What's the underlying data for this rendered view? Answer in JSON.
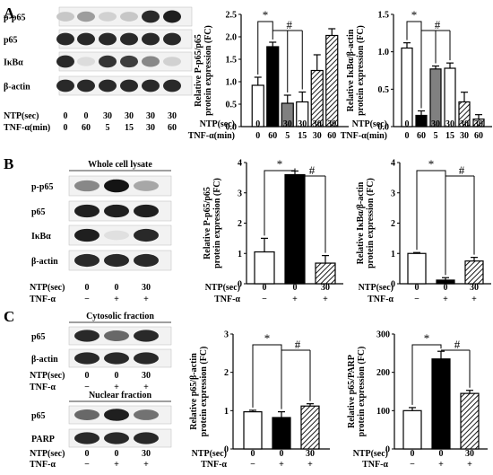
{
  "panels": [
    "A",
    "B",
    "C"
  ],
  "blots": {
    "A": {
      "rows": [
        "p-p65",
        "p65",
        "IκBα",
        "β-actin"
      ],
      "ntp_label": "NTP(sec)",
      "ntp": [
        "0",
        "0",
        "30",
        "30",
        "30",
        "30"
      ],
      "tnf_label": "TNF-α(min)",
      "tnf": [
        "0",
        "60",
        "5",
        "15",
        "30",
        "60"
      ]
    },
    "B": {
      "title": "Whole cell lysate",
      "rows": [
        "p-p65",
        "p65",
        "IκBα",
        "β-actin"
      ],
      "ntp_label": "NTP(sec)",
      "ntp": [
        "0",
        "0",
        "30"
      ],
      "tnf_label": "TNF-α",
      "tnf": [
        "−",
        "+",
        "+"
      ]
    },
    "C1": {
      "title": "Cytosolic fraction",
      "rows": [
        "p65",
        "β-actin"
      ],
      "ntp_label": "NTP(sec)",
      "ntp": [
        "0",
        "0",
        "30"
      ],
      "tnf_label": "TNF-α",
      "tnf": [
        "−",
        "+",
        "+"
      ]
    },
    "C2": {
      "title": "Nuclear fraction",
      "rows": [
        "p65",
        "PARP"
      ],
      "ntp_label": "NTP(sec)",
      "ntp": [
        "0",
        "0",
        "30"
      ],
      "tnf_label": "TNF-α",
      "tnf": [
        "−",
        "+",
        "+"
      ]
    }
  },
  "chart_data": [
    {
      "id": "A1",
      "type": "bar",
      "ylabel": [
        "Relative P-p65/p65",
        "protein expression (FC)"
      ],
      "ylim": [
        0,
        2.5
      ],
      "yticks": [
        "0.0",
        "0.5",
        "1.0",
        "1.5",
        "2.0",
        "2.5"
      ],
      "values": [
        0.92,
        1.78,
        0.52,
        0.55,
        1.25,
        2.03
      ],
      "errors": [
        0.18,
        0.1,
        0.18,
        0.22,
        0.35,
        0.15
      ],
      "fills": [
        "white",
        "black",
        "gray",
        "white",
        "hatch",
        "hatch"
      ],
      "ntp_label": "NTP(sec)",
      "ntp": [
        "0",
        "0",
        "30",
        "30",
        "30",
        "30"
      ],
      "tnf_label": "TNF-α(min)",
      "tnf": [
        "0",
        "60",
        "5",
        "15",
        "30",
        "60"
      ],
      "annotations": [
        "*",
        "#"
      ]
    },
    {
      "id": "A2",
      "type": "bar",
      "ylabel": [
        "Relative IκBα/β-actin",
        "protein expression (FC)"
      ],
      "ylim": [
        0,
        1.5
      ],
      "yticks": [
        "0.0",
        "0.5",
        "1.0",
        "1.5"
      ],
      "values": [
        1.05,
        0.15,
        0.77,
        0.78,
        0.33,
        0.1
      ],
      "errors": [
        0.07,
        0.06,
        0.04,
        0.07,
        0.13,
        0.06
      ],
      "fills": [
        "white",
        "black",
        "gray",
        "white",
        "hatch",
        "hatch"
      ],
      "ntp_label": "NTP(sec)",
      "ntp": [
        "0",
        "0",
        "30",
        "30",
        "30",
        "30"
      ],
      "tnf_label": "TNF-α(min)",
      "tnf": [
        "0",
        "60",
        "5",
        "15",
        "30",
        "60"
      ],
      "annotations": [
        "*",
        "#"
      ]
    },
    {
      "id": "B1",
      "type": "bar",
      "ylabel": [
        "Relative P-p65/p65",
        "protein expression (FC)"
      ],
      "ylim": [
        0,
        4
      ],
      "yticks": [
        "0",
        "1",
        "2",
        "3",
        "4"
      ],
      "values": [
        1.05,
        3.6,
        0.68
      ],
      "errors": [
        0.45,
        0.12,
        0.25
      ],
      "fills": [
        "white",
        "black",
        "hatch"
      ],
      "ntp_label": "NTP(sec)",
      "ntp": [
        "0",
        "0",
        "30"
      ],
      "tnf_label": "TNF-α",
      "tnf": [
        "−",
        "+",
        "+"
      ],
      "annotations": [
        "*",
        "#"
      ]
    },
    {
      "id": "B2",
      "type": "bar",
      "ylabel": [
        "Relative IκBα/β-actin",
        "protein expression (FC)"
      ],
      "ylim": [
        0,
        4
      ],
      "yticks": [
        "0",
        "1",
        "2",
        "3",
        "4"
      ],
      "values": [
        1.0,
        0.12,
        0.75
      ],
      "errors": [
        0.03,
        0.08,
        0.12
      ],
      "fills": [
        "white",
        "black",
        "hatch"
      ],
      "ntp_label": "NTP(sec)",
      "ntp": [
        "0",
        "0",
        "30"
      ],
      "tnf_label": "TNF-α",
      "tnf": [
        "−",
        "+",
        "+"
      ],
      "annotations": [
        "*",
        "#"
      ]
    },
    {
      "id": "C1",
      "type": "bar",
      "ylabel": [
        "Relative p65/β-actin",
        "protein expression (FC)"
      ],
      "ylim": [
        0,
        3
      ],
      "yticks": [
        "0",
        "1",
        "2",
        "3"
      ],
      "values": [
        0.97,
        0.82,
        1.12
      ],
      "errors": [
        0.04,
        0.15,
        0.06
      ],
      "fills": [
        "white",
        "black",
        "hatch"
      ],
      "ntp_label": "NTP(sec)",
      "ntp": [
        "0",
        "0",
        "30"
      ],
      "tnf_label": "TNF-α",
      "tnf": [
        "−",
        "+",
        "+"
      ],
      "annotations": [
        "*",
        "#"
      ]
    },
    {
      "id": "C2",
      "type": "bar",
      "ylabel": [
        "Relative p65/PARP",
        "protein expression (FC)"
      ],
      "ylim": [
        0,
        300
      ],
      "yticks": [
        "0",
        "100",
        "200",
        "300"
      ],
      "values": [
        100,
        235,
        145
      ],
      "errors": [
        8,
        20,
        8
      ],
      "fills": [
        "white",
        "black",
        "hatch"
      ],
      "ntp_label": "NTP(sec)",
      "ntp": [
        "0",
        "0",
        "30"
      ],
      "tnf_label": "TNF-α",
      "tnf": [
        "−",
        "+",
        "+"
      ],
      "annotations": [
        "*",
        "#"
      ]
    }
  ]
}
